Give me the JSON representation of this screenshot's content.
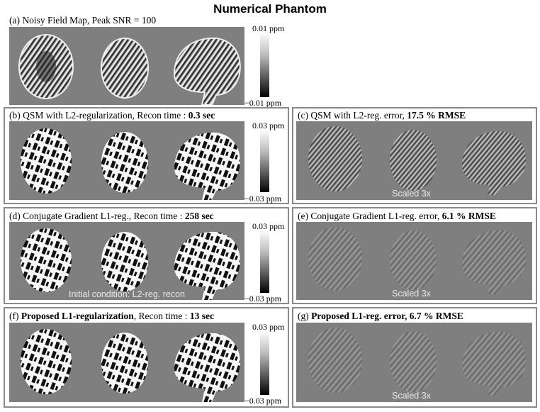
{
  "title": "Numerical Phantom",
  "rows": [
    {
      "id": "a",
      "label": "(a) Noisy Field Map, Peak SNR = 100",
      "cbar_top": "0.01 ppm",
      "cbar_bottom": "−0.01 ppm"
    },
    {
      "id": "b",
      "label_prefix": "(b) QSM with L2-regularization, Recon time : ",
      "label_value": "0.3 sec",
      "cbar_top": "0.03 ppm",
      "cbar_bottom": "−0.03 ppm"
    },
    {
      "id": "d",
      "label_prefix": "(d) Conjugate Gradient L1-reg., Recon time : ",
      "label_value": "258 sec",
      "cbar_top": "0.03 ppm",
      "cbar_bottom": "−0.03 ppm",
      "note": "Initial condition: L2-reg. recon"
    },
    {
      "id": "f",
      "label_open": "(f) ",
      "label_bold": "Proposed L1-regularization",
      "label_mid": ", Recon time : ",
      "label_value": "13 sec",
      "cbar_top": "0.03 ppm",
      "cbar_bottom": "−0.03 ppm"
    }
  ],
  "errors": [
    {
      "id": "c",
      "label_prefix": "(c) QSM with L2-reg. error, ",
      "label_value": "17.5 % RMSE",
      "note": "Scaled 3x"
    },
    {
      "id": "e",
      "label_prefix": "(e) Conjugate Gradient L1-reg. error, ",
      "label_value": "6.1 % RMSE",
      "note": "Scaled 3x"
    },
    {
      "id": "g",
      "label_open": "(g) ",
      "label_bold": "Proposed L1-reg. error, 6.7 % RMSE",
      "note": "Scaled 3x"
    }
  ]
}
